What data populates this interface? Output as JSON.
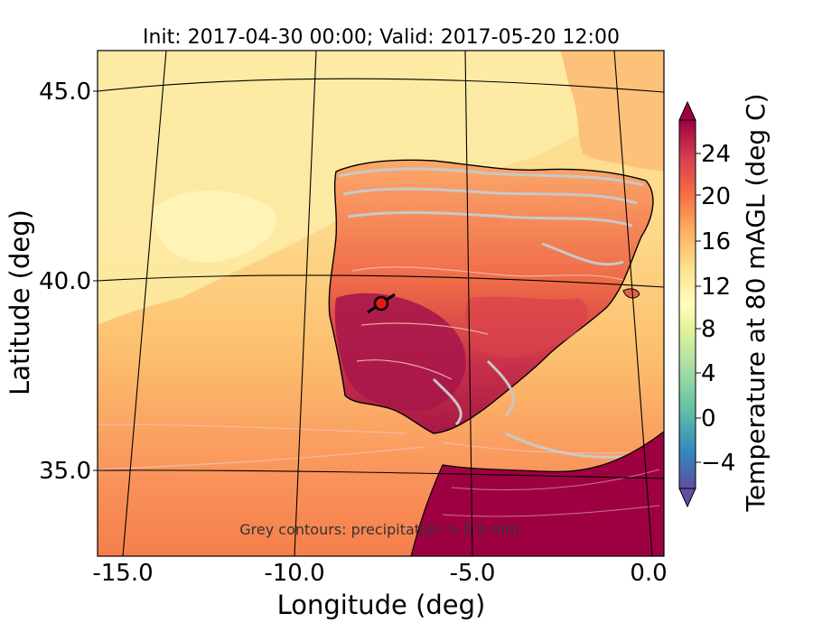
{
  "map": {
    "title": "Init: 2017-04-30 00:00; Valid: 2017-05-20 12:00",
    "x_axis_label": "Longitude (deg)",
    "y_axis_label": "Latitude (deg)",
    "x_ticks": [
      "-15.0",
      "-10.0",
      "-5.0",
      "0.0"
    ],
    "y_ticks": [
      "45.0",
      "40.0",
      "35.0"
    ],
    "note": "Grey contours: precipitation > 0.5 mm",
    "colorbar": {
      "label": "Temperature at 80 mAGL (deg C)",
      "ticks": [
        "24",
        "20",
        "16",
        "12",
        "8",
        "4",
        "0",
        "−4"
      ],
      "min": -8,
      "max": 28,
      "palette": [
        "#5e4fa2",
        "#3288bd",
        "#66c2a5",
        "#abdda4",
        "#e6f598",
        "#ffffbf",
        "#fee08b",
        "#fdae61",
        "#f46d43",
        "#d53e4f",
        "#9e0142"
      ]
    },
    "marker": {
      "name": "site-marker",
      "color": "#e8171a"
    },
    "colors": {
      "sea_north": "#fde08b",
      "sea_mid": "#fdbf6f",
      "sea_south": "#f88b4e",
      "land": "#e7614a",
      "land_hot": "#b51f48",
      "africa": "#9e0142",
      "precip_contour": "#c8c8c8"
    }
  }
}
